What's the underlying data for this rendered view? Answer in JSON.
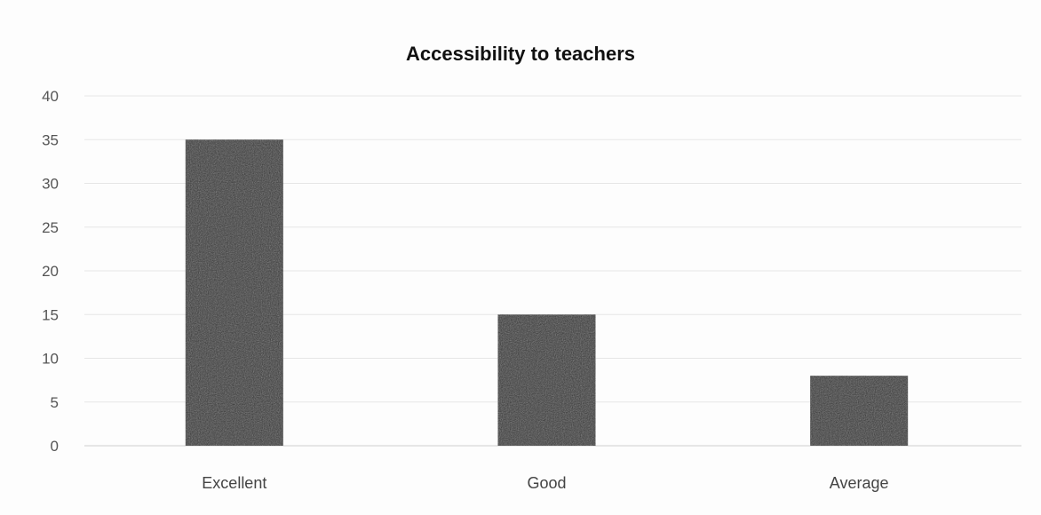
{
  "chart_data": {
    "type": "bar",
    "title": "Accessibility to teachers",
    "categories": [
      "Excellent",
      "Good",
      "Average"
    ],
    "values": [
      35,
      15,
      8
    ],
    "xlabel": "",
    "ylabel": "",
    "ylim": [
      0,
      40
    ],
    "yticks": [
      0,
      5,
      10,
      15,
      20,
      25,
      30,
      35,
      40
    ],
    "grid": true,
    "legend": "none"
  },
  "colors": {
    "bar": "#2a2a2a",
    "grid": "#e6e6e6",
    "axis": "#cfcfcf"
  }
}
